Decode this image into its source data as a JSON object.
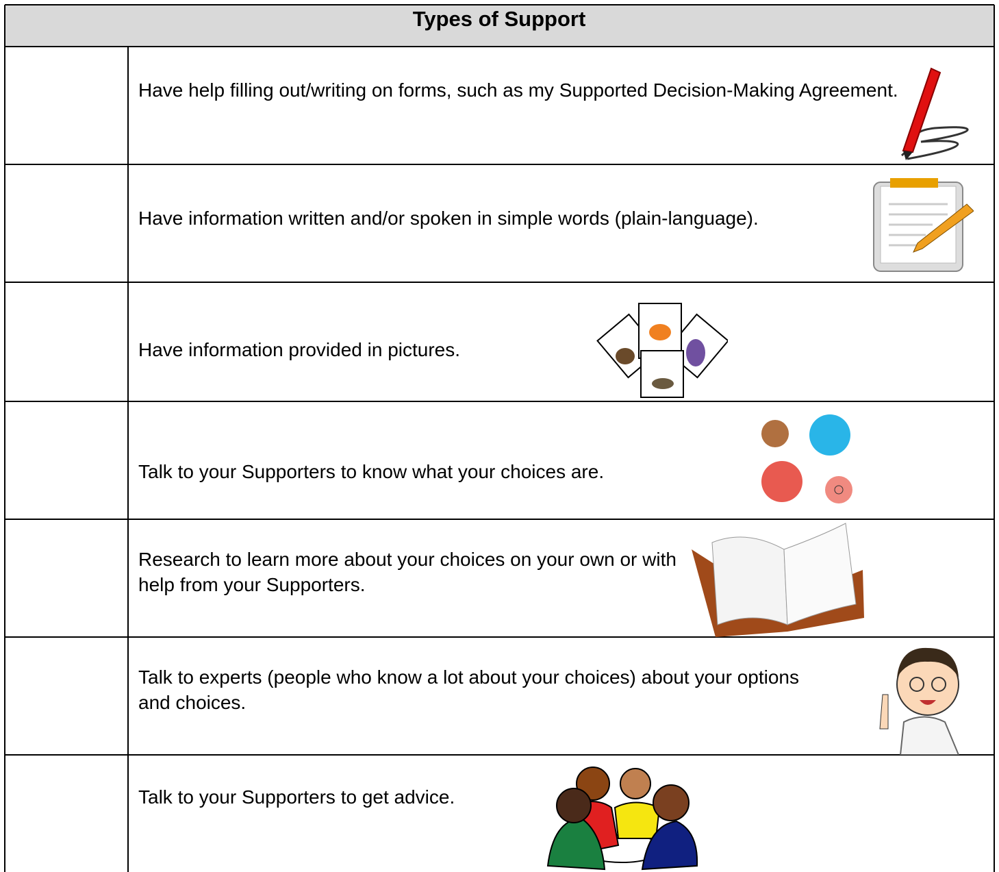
{
  "table": {
    "title": "Types of Support",
    "rows": [
      "Have help filling out/writing on forms, such as my Supported Decision-Making Agreement.",
      "Have information written and/or spoken in simple words (plain-language).",
      "Have information provided in pictures.",
      "Talk to your Supporters to know what your choices are.",
      "Research to learn more about your choices on your own or with help from your Supporters.",
      "Talk to experts (people who know a lot about your choices) about your options and choices.",
      "Talk to your Supporters to get advice."
    ]
  }
}
